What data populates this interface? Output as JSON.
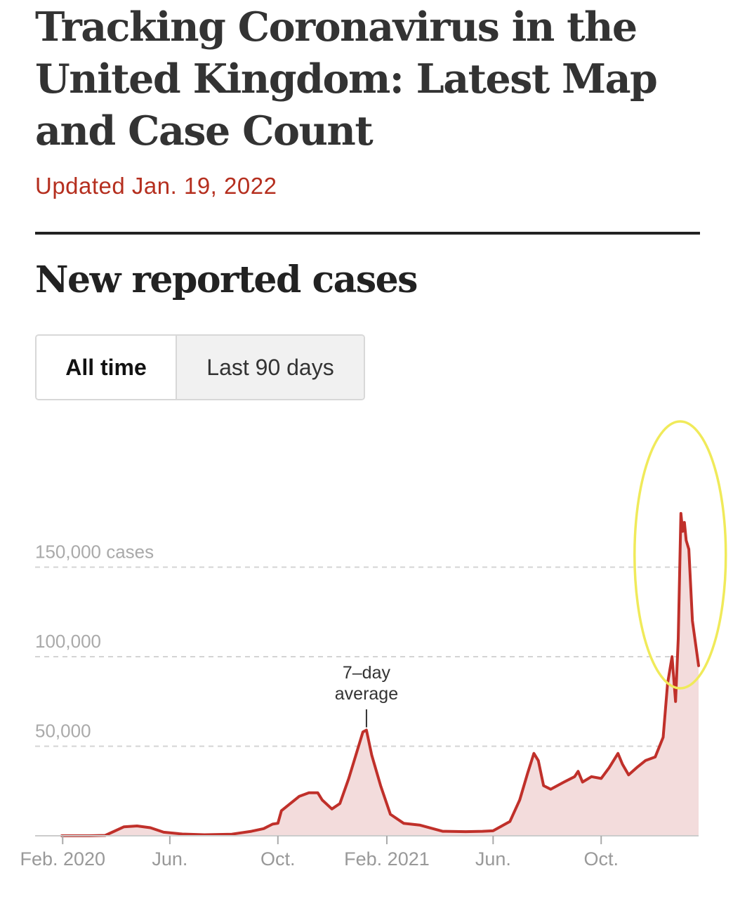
{
  "article": {
    "headline": "Tracking Coronavirus in the United Kingdom: Latest Map and Case Count",
    "updated": "Updated Jan. 19, 2022"
  },
  "section": {
    "title": "New reported cases"
  },
  "toggle": {
    "all_time": "All time",
    "last_90_days": "Last 90 days",
    "selected": "All time"
  },
  "colors": {
    "line": "#c0302a",
    "area": "#f3dcdc",
    "highlight": "#f0ea5a",
    "updated_text": "#b52f1f"
  },
  "chart_data": {
    "type": "area",
    "ylim": [
      0,
      150000
    ],
    "y_ticks": [
      {
        "value": 150000,
        "label": "150,000 cases"
      },
      {
        "value": 100000,
        "label": "100,000"
      },
      {
        "value": 50000,
        "label": "50,000"
      }
    ],
    "x_ticks": [
      {
        "date": "2020-02-01",
        "label": "Feb. 2020"
      },
      {
        "date": "2020-06-01",
        "label": "Jun."
      },
      {
        "date": "2020-10-01",
        "label": "Oct."
      },
      {
        "date": "2021-02-01",
        "label": "Feb. 2021"
      },
      {
        "date": "2021-06-01",
        "label": "Jun."
      },
      {
        "date": "2021-10-01",
        "label": "Oct."
      }
    ],
    "annotation": {
      "text_line1": "7–day",
      "text_line2": "average",
      "date": "2021-01-09",
      "value": 59000
    },
    "highlight": "circle around the Dec. 2021 – Jan. 2022 peak",
    "series": [
      {
        "x": [
          "2020-01-31",
          "2020-03-01",
          "2020-03-20",
          "2020-04-10",
          "2020-04-25",
          "2020-05-10",
          "2020-05-25",
          "2020-06-15",
          "2020-07-10",
          "2020-08-10",
          "2020-09-01",
          "2020-09-15",
          "2020-09-25",
          "2020-10-01",
          "2020-10-05",
          "2020-10-15",
          "2020-10-25",
          "2020-11-05",
          "2020-11-15",
          "2020-11-20",
          "2020-12-01",
          "2020-12-10",
          "2020-12-20",
          "2020-12-28",
          "2021-01-05",
          "2021-01-09",
          "2021-01-15",
          "2021-01-25",
          "2021-02-05",
          "2021-02-20",
          "2021-03-10",
          "2021-04-05",
          "2021-05-01",
          "2021-05-20",
          "2021-06-01",
          "2021-06-20",
          "2021-07-01",
          "2021-07-10",
          "2021-07-17",
          "2021-07-22",
          "2021-07-28",
          "2021-08-05",
          "2021-08-20",
          "2021-09-01",
          "2021-09-05",
          "2021-09-10",
          "2021-09-20",
          "2021-10-01",
          "2021-10-10",
          "2021-10-20",
          "2021-10-25",
          "2021-11-01",
          "2021-11-10",
          "2021-11-20",
          "2021-12-01",
          "2021-12-10",
          "2021-12-15",
          "2021-12-20",
          "2021-12-24",
          "2021-12-27",
          "2021-12-30",
          "2022-01-01",
          "2022-01-03",
          "2022-01-05",
          "2022-01-08",
          "2022-01-12",
          "2022-01-19"
        ],
        "y": [
          0,
          0,
          200,
          5000,
          5500,
          4500,
          2000,
          1000,
          600,
          900,
          2500,
          4000,
          6500,
          7000,
          14000,
          18000,
          22000,
          24000,
          24000,
          20000,
          15000,
          18000,
          32000,
          45000,
          58000,
          59000,
          45000,
          28000,
          12000,
          7000,
          6000,
          2500,
          2300,
          2500,
          2800,
          8000,
          20000,
          35000,
          46000,
          42000,
          28000,
          26000,
          30000,
          33000,
          36000,
          30000,
          33000,
          32000,
          38000,
          46000,
          40000,
          34000,
          38000,
          42000,
          44000,
          55000,
          85000,
          100000,
          75000,
          110000,
          180000,
          170000,
          175000,
          165000,
          160000,
          120000,
          95000
        ]
      }
    ]
  }
}
